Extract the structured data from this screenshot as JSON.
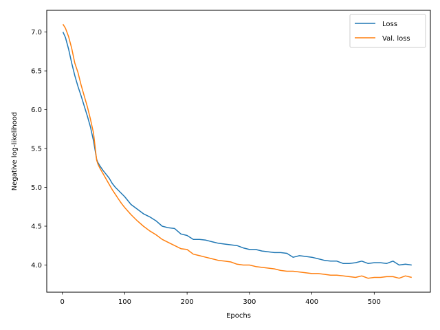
{
  "chart_data": {
    "type": "line",
    "title": "",
    "xlabel": "Epochs",
    "ylabel": "Negative log-likelihood",
    "xlim": [
      -25,
      590
    ],
    "ylim": [
      3.65,
      7.28
    ],
    "xticks": [
      0,
      100,
      200,
      300,
      400,
      500
    ],
    "yticks": [
      4.0,
      4.5,
      5.0,
      5.5,
      6.0,
      6.5,
      7.0
    ],
    "xtick_labels": [
      "0",
      "100",
      "200",
      "300",
      "400",
      "500"
    ],
    "ytick_labels": [
      "4.0",
      "4.5",
      "5.0",
      "5.5",
      "6.0",
      "6.5",
      "7.0"
    ],
    "grid": false,
    "legend": "top-right",
    "series": [
      {
        "name": "Loss",
        "color": "#1f77b4",
        "x": [
          1,
          5,
          10,
          15,
          20,
          25,
          30,
          35,
          40,
          45,
          50,
          55,
          57,
          60,
          65,
          70,
          75,
          80,
          85,
          90,
          95,
          100,
          110,
          120,
          130,
          140,
          150,
          160,
          170,
          180,
          190,
          200,
          210,
          220,
          230,
          240,
          250,
          260,
          270,
          280,
          290,
          300,
          310,
          320,
          330,
          340,
          350,
          360,
          370,
          380,
          390,
          400,
          410,
          420,
          430,
          440,
          450,
          460,
          470,
          480,
          490,
          500,
          510,
          520,
          530,
          540,
          550,
          560
        ],
        "y": [
          7.0,
          6.93,
          6.78,
          6.6,
          6.44,
          6.3,
          6.18,
          6.05,
          5.92,
          5.78,
          5.6,
          5.36,
          5.32,
          5.28,
          5.22,
          5.17,
          5.12,
          5.05,
          5.0,
          4.96,
          4.92,
          4.88,
          4.78,
          4.72,
          4.66,
          4.62,
          4.57,
          4.5,
          4.48,
          4.47,
          4.4,
          4.38,
          4.33,
          4.33,
          4.32,
          4.3,
          4.28,
          4.27,
          4.26,
          4.25,
          4.22,
          4.2,
          4.2,
          4.18,
          4.17,
          4.16,
          4.16,
          4.15,
          4.1,
          4.12,
          4.11,
          4.1,
          4.08,
          4.06,
          4.05,
          4.05,
          4.02,
          4.02,
          4.03,
          4.05,
          4.02,
          4.03,
          4.03,
          4.02,
          4.05,
          4.0,
          4.01,
          4.0
        ]
      },
      {
        "name": "Val. loss",
        "color": "#ff7f0e",
        "x": [
          1,
          5,
          10,
          15,
          20,
          25,
          30,
          35,
          40,
          45,
          50,
          55,
          57,
          60,
          65,
          70,
          75,
          80,
          85,
          90,
          95,
          100,
          110,
          120,
          130,
          140,
          150,
          160,
          170,
          180,
          190,
          200,
          210,
          220,
          230,
          240,
          250,
          260,
          270,
          280,
          290,
          300,
          310,
          320,
          330,
          340,
          350,
          360,
          370,
          380,
          390,
          400,
          410,
          420,
          430,
          440,
          450,
          460,
          470,
          480,
          490,
          500,
          510,
          520,
          530,
          540,
          550,
          560
        ],
        "y": [
          7.1,
          7.05,
          6.94,
          6.79,
          6.6,
          6.48,
          6.32,
          6.18,
          6.04,
          5.88,
          5.7,
          5.35,
          5.3,
          5.25,
          5.18,
          5.11,
          5.04,
          4.97,
          4.91,
          4.85,
          4.79,
          4.74,
          4.65,
          4.57,
          4.5,
          4.44,
          4.39,
          4.33,
          4.29,
          4.25,
          4.21,
          4.2,
          4.14,
          4.12,
          4.1,
          4.08,
          4.06,
          4.05,
          4.04,
          4.01,
          4.0,
          4.0,
          3.98,
          3.97,
          3.96,
          3.95,
          3.93,
          3.92,
          3.92,
          3.91,
          3.9,
          3.89,
          3.89,
          3.88,
          3.87,
          3.87,
          3.86,
          3.85,
          3.84,
          3.86,
          3.83,
          3.84,
          3.84,
          3.85,
          3.85,
          3.83,
          3.86,
          3.84
        ]
      }
    ]
  }
}
